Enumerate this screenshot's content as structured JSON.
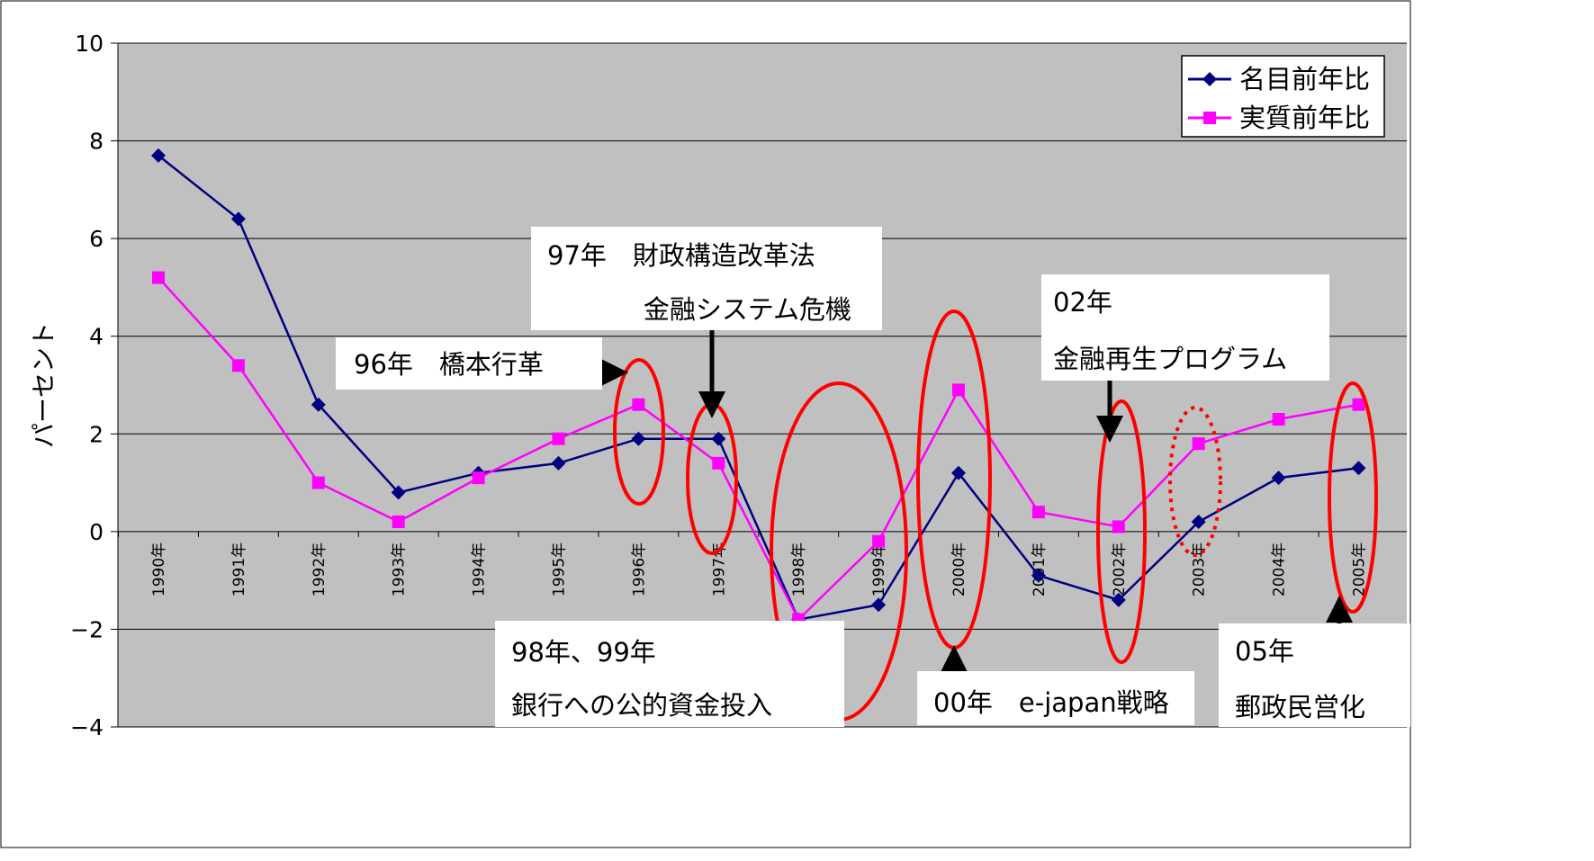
{
  "chart_data": {
    "type": "line",
    "categories": [
      "1990年",
      "1991年",
      "1992年",
      "1993年",
      "1994年",
      "1995年",
      "1996年",
      "1997年",
      "1998年",
      "1999年",
      "2000年",
      "2001年",
      "2002年",
      "2003年",
      "2004年",
      "2005年"
    ],
    "series": [
      {
        "name": "名目前年比",
        "color": "#000080",
        "marker": "diamond",
        "values": [
          7.7,
          6.4,
          2.6,
          0.8,
          1.2,
          1.4,
          1.9,
          1.9,
          -1.8,
          -1.5,
          1.2,
          -0.9,
          -1.4,
          0.2,
          1.1,
          1.3
        ]
      },
      {
        "name": "実質前年比",
        "color": "#FF00FF",
        "marker": "square",
        "values": [
          5.2,
          3.4,
          1.0,
          0.2,
          1.1,
          1.9,
          2.6,
          1.4,
          -1.8,
          -0.2,
          2.9,
          0.4,
          0.1,
          1.8,
          2.3,
          2.6
        ]
      }
    ],
    "ylabel": "パーセント",
    "ylim": [
      -4,
      10
    ],
    "yticks": [
      "10",
      "8",
      "6",
      "4",
      "2",
      "0",
      "−2",
      "−4"
    ],
    "grid": true,
    "legend_position": "top-right",
    "plot_background": "#C0C0C0",
    "annotations": [
      {
        "id": "a96",
        "lines": [
          "96年　橋本行革"
        ]
      },
      {
        "id": "a97",
        "lines": [
          "97年　財政構造改革法",
          "金融システム危機"
        ]
      },
      {
        "id": "a98",
        "lines": [
          "98年、99年",
          "銀行への公的資金投入"
        ]
      },
      {
        "id": "a00",
        "lines": [
          "00年　e-japan戦略"
        ]
      },
      {
        "id": "a02",
        "lines": [
          "02年",
          "金融再生プログラム"
        ]
      },
      {
        "id": "a05",
        "lines": [
          "05年",
          "郵政民営化"
        ]
      }
    ],
    "highlight_color": "#FF0000"
  }
}
